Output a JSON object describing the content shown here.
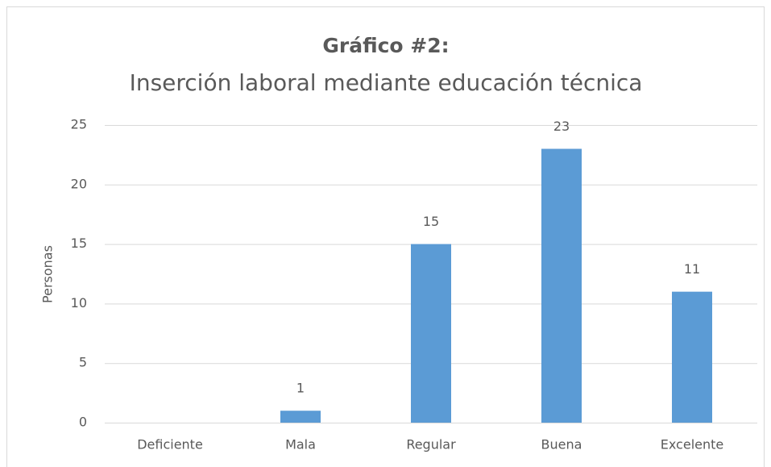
{
  "chart_data": {
    "type": "bar",
    "title": "Gráfico #2:",
    "subtitle": "Inserción laboral mediante educación técnica",
    "y_label": "Personas",
    "categories": [
      "Deficiente",
      "Mala",
      "Regular",
      "Buena",
      "Excelente"
    ],
    "values": [
      null,
      1,
      15,
      23,
      11
    ],
    "color": "#5b9bd5",
    "ylim": [
      0,
      25
    ],
    "yticks": [
      0,
      5,
      10,
      15,
      20,
      25
    ],
    "grid": true
  }
}
